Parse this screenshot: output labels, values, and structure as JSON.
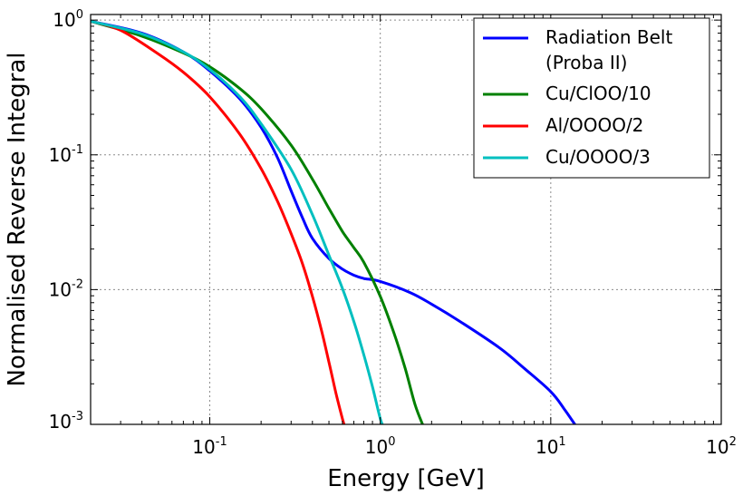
{
  "chart_data": {
    "type": "line",
    "title": "",
    "xlabel": "Energy [GeV]",
    "ylabel": "Normalised Reverse Integral",
    "xscale": "log",
    "yscale": "log",
    "xlim": [
      0.02,
      100
    ],
    "ylim": [
      0.001,
      1.1
    ],
    "grid": true,
    "legend_position": "top-right",
    "x_ticks": [
      {
        "base": "10",
        "exp": "-1",
        "value": 0.1
      },
      {
        "base": "10",
        "exp": "0",
        "value": 1
      },
      {
        "base": "10",
        "exp": "1",
        "value": 10
      },
      {
        "base": "10",
        "exp": "2",
        "value": 100
      }
    ],
    "y_ticks": [
      {
        "base": "10",
        "exp": "-3",
        "value": 0.001
      },
      {
        "base": "10",
        "exp": "-2",
        "value": 0.01
      },
      {
        "base": "10",
        "exp": "-1",
        "value": 0.1
      },
      {
        "base": "10",
        "exp": "0",
        "value": 1
      }
    ],
    "series": [
      {
        "name": "Radiation Belt (Proba II)",
        "legend_lines": [
          "Radiation Belt",
          "(Proba II)"
        ],
        "color": "#0000ff",
        "x": [
          0.02,
          0.04,
          0.07,
          0.1,
          0.15,
          0.2,
          0.25,
          0.3,
          0.35,
          0.4,
          0.5,
          0.6,
          0.7,
          0.8,
          1.0,
          1.5,
          2.0,
          3.0,
          5.0,
          7.0,
          10.0,
          12.0,
          14.0
        ],
        "y": [
          0.98,
          0.8,
          0.58,
          0.42,
          0.26,
          0.16,
          0.095,
          0.054,
          0.034,
          0.024,
          0.017,
          0.0142,
          0.0128,
          0.0121,
          0.0115,
          0.0095,
          0.0078,
          0.0057,
          0.0037,
          0.0026,
          0.00175,
          0.0013,
          0.00098
        ]
      },
      {
        "name": "Cu/ClOO/10",
        "legend_lines": [
          "Cu/ClOO/10"
        ],
        "color": "#008000",
        "x": [
          0.02,
          0.04,
          0.07,
          0.1,
          0.15,
          0.2,
          0.3,
          0.4,
          0.5,
          0.6,
          0.7,
          0.8,
          1.0,
          1.2,
          1.4,
          1.6,
          1.8
        ],
        "y": [
          0.98,
          0.76,
          0.57,
          0.45,
          0.31,
          0.22,
          0.118,
          0.066,
          0.04,
          0.027,
          0.0205,
          0.016,
          0.0089,
          0.0048,
          0.0026,
          0.0014,
          0.00095
        ]
      },
      {
        "name": "Al/OOOO/2",
        "legend_lines": [
          "Al/OOOO/2"
        ],
        "color": "#ff0000",
        "x": [
          0.02,
          0.03,
          0.05,
          0.07,
          0.1,
          0.15,
          0.2,
          0.25,
          0.3,
          0.35,
          0.4,
          0.45,
          0.5,
          0.55,
          0.6,
          0.62
        ],
        "y": [
          0.98,
          0.84,
          0.56,
          0.41,
          0.27,
          0.142,
          0.079,
          0.045,
          0.026,
          0.0155,
          0.0089,
          0.0051,
          0.0029,
          0.0017,
          0.0011,
          0.00095
        ]
      },
      {
        "name": "Cu/OOOO/3",
        "legend_lines": [
          "Cu/OOOO/3"
        ],
        "color": "#00bfbf",
        "x": [
          0.02,
          0.04,
          0.07,
          0.1,
          0.15,
          0.2,
          0.3,
          0.4,
          0.5,
          0.6,
          0.7,
          0.8,
          0.9,
          1.0,
          1.05
        ],
        "y": [
          0.98,
          0.79,
          0.58,
          0.43,
          0.27,
          0.17,
          0.078,
          0.036,
          0.018,
          0.0102,
          0.0058,
          0.0033,
          0.0019,
          0.0011,
          0.00095
        ]
      }
    ]
  }
}
